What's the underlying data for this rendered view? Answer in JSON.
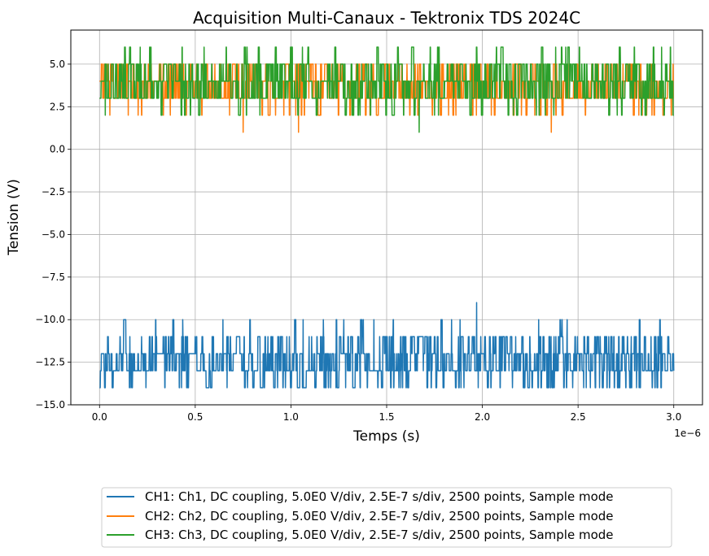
{
  "chart_data": {
    "type": "line",
    "title": "Acquisition Multi-Canaux - Tektronix TDS 2024C",
    "xlabel": "Temps (s)",
    "ylabel": "Tension (V)",
    "x_offset_label": "1e−6",
    "xlim": [
      -1.5e-07,
      3.15e-06
    ],
    "ylim": [
      -15.0,
      7.0
    ],
    "x_ticks": [
      0,
      5e-07,
      1e-06,
      1.5e-06,
      2e-06,
      2.5e-06,
      3e-06
    ],
    "x_tick_labels": [
      "0.0",
      "0.5",
      "1.0",
      "1.5",
      "2.0",
      "2.5",
      "3.0"
    ],
    "y_ticks": [
      5.0,
      2.5,
      0.0,
      -2.5,
      -5.0,
      -7.5,
      -10.0,
      -12.5,
      -15.0
    ],
    "y_tick_labels": [
      "5.0",
      "2.5",
      "0.0",
      "−2.5",
      "−5.0",
      "−7.5",
      "−10.0",
      "−12.5",
      "−15.0"
    ],
    "grid": true,
    "legend_position": "below the plot",
    "x_range": [
      0,
      3e-06
    ],
    "points_per_series": 2500,
    "series": [
      {
        "name": "CH1: Ch1, DC coupling, 5.0E0 V/div, 2.5E-7 s/div, 2500 points, Sample mode",
        "color": "#1f77b4",
        "base": -12,
        "levels": [
          -14,
          -13,
          -12,
          -11,
          -10
        ],
        "weights": [
          0.12,
          0.38,
          0.3,
          0.17,
          0.03
        ],
        "spikes": [
          [
            1.97e-06,
            -9
          ]
        ]
      },
      {
        "name": "CH2: Ch2, DC coupling, 5.0E0 V/div, 2.5E-7 s/div, 2500 points, Sample mode",
        "color": "#ff7f0e",
        "base": 4,
        "levels": [
          2,
          3,
          4,
          5
        ],
        "weights": [
          0.06,
          0.36,
          0.36,
          0.22
        ],
        "spikes": [
          [
            7.5e-07,
            1
          ],
          [
            1.04e-06,
            1
          ],
          [
            2.36e-06,
            1
          ],
          [
            9.2e-07,
            2
          ]
        ]
      },
      {
        "name": "CH3: Ch3, DC coupling, 5.0E0 V/div, 2.5E-7 s/div, 2500 points, Sample mode",
        "color": "#2ca02c",
        "base": 4,
        "levels": [
          2,
          3,
          4,
          5,
          6
        ],
        "weights": [
          0.05,
          0.35,
          0.35,
          0.2,
          0.05
        ],
        "spikes": [
          [
            1.67e-06,
            1
          ]
        ]
      }
    ]
  }
}
